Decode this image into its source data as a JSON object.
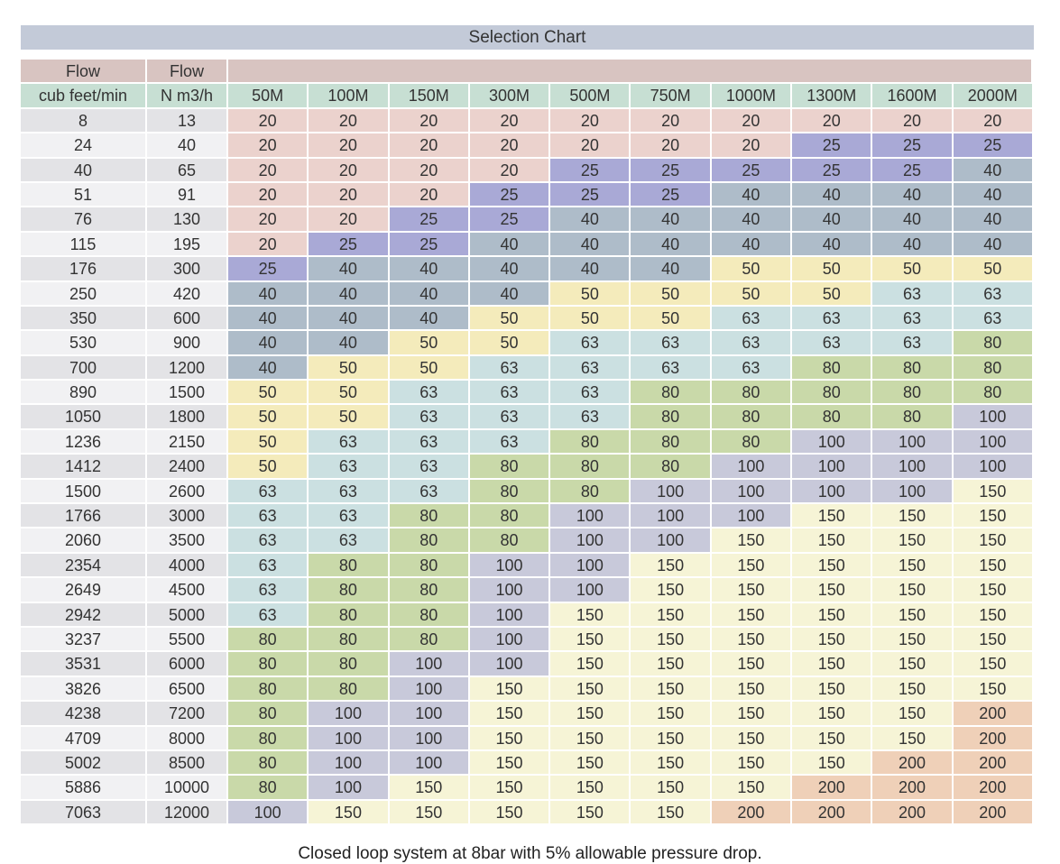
{
  "title": "Selection Chart",
  "caption": "Closed loop system at 8bar with 5% allowable pressure drop.",
  "header": {
    "flow1_label": "Flow",
    "flow1_unit": "cub feet/min",
    "flow2_label": "Flow",
    "flow2_unit": "N m3/h"
  },
  "columns": [
    "50M",
    "100M",
    "150M",
    "300M",
    "500M",
    "750M",
    "1000M",
    "1300M",
    "1600M",
    "2000M"
  ],
  "rows": [
    {
      "cfm": "8",
      "nm3h": "13",
      "values": [
        "20",
        "20",
        "20",
        "20",
        "20",
        "20",
        "20",
        "20",
        "20",
        "20"
      ]
    },
    {
      "cfm": "24",
      "nm3h": "40",
      "values": [
        "20",
        "20",
        "20",
        "20",
        "20",
        "20",
        "20",
        "25",
        "25",
        "25"
      ]
    },
    {
      "cfm": "40",
      "nm3h": "65",
      "values": [
        "20",
        "20",
        "20",
        "20",
        "25",
        "25",
        "25",
        "25",
        "25",
        "40"
      ]
    },
    {
      "cfm": "51",
      "nm3h": "91",
      "values": [
        "20",
        "20",
        "20",
        "25",
        "25",
        "25",
        "40",
        "40",
        "40",
        "40"
      ]
    },
    {
      "cfm": "76",
      "nm3h": "130",
      "values": [
        "20",
        "20",
        "25",
        "25",
        "40",
        "40",
        "40",
        "40",
        "40",
        "40"
      ]
    },
    {
      "cfm": "115",
      "nm3h": "195",
      "values": [
        "20",
        "25",
        "25",
        "40",
        "40",
        "40",
        "40",
        "40",
        "40",
        "40"
      ]
    },
    {
      "cfm": "176",
      "nm3h": "300",
      "values": [
        "25",
        "40",
        "40",
        "40",
        "40",
        "40",
        "50",
        "50",
        "50",
        "50"
      ]
    },
    {
      "cfm": "250",
      "nm3h": "420",
      "values": [
        "40",
        "40",
        "40",
        "40",
        "50",
        "50",
        "50",
        "50",
        "63",
        "63"
      ]
    },
    {
      "cfm": "350",
      "nm3h": "600",
      "values": [
        "40",
        "40",
        "40",
        "50",
        "50",
        "50",
        "63",
        "63",
        "63",
        "63"
      ]
    },
    {
      "cfm": "530",
      "nm3h": "900",
      "values": [
        "40",
        "40",
        "50",
        "50",
        "63",
        "63",
        "63",
        "63",
        "63",
        "80"
      ]
    },
    {
      "cfm": "700",
      "nm3h": "1200",
      "values": [
        "40",
        "50",
        "50",
        "63",
        "63",
        "63",
        "63",
        "80",
        "80",
        "80"
      ]
    },
    {
      "cfm": "890",
      "nm3h": "1500",
      "values": [
        "50",
        "50",
        "63",
        "63",
        "63",
        "80",
        "80",
        "80",
        "80",
        "80"
      ]
    },
    {
      "cfm": "1050",
      "nm3h": "1800",
      "values": [
        "50",
        "50",
        "63",
        "63",
        "63",
        "80",
        "80",
        "80",
        "80",
        "100"
      ]
    },
    {
      "cfm": "1236",
      "nm3h": "2150",
      "values": [
        "50",
        "63",
        "63",
        "63",
        "80",
        "80",
        "80",
        "100",
        "100",
        "100"
      ]
    },
    {
      "cfm": "1412",
      "nm3h": "2400",
      "values": [
        "50",
        "63",
        "63",
        "80",
        "80",
        "80",
        "100",
        "100",
        "100",
        "100"
      ]
    },
    {
      "cfm": "1500",
      "nm3h": "2600",
      "values": [
        "63",
        "63",
        "63",
        "80",
        "80",
        "100",
        "100",
        "100",
        "100",
        "150"
      ]
    },
    {
      "cfm": "1766",
      "nm3h": "3000",
      "values": [
        "63",
        "63",
        "80",
        "80",
        "100",
        "100",
        "100",
        "150",
        "150",
        "150"
      ]
    },
    {
      "cfm": "2060",
      "nm3h": "3500",
      "values": [
        "63",
        "63",
        "80",
        "80",
        "100",
        "100",
        "150",
        "150",
        "150",
        "150"
      ]
    },
    {
      "cfm": "2354",
      "nm3h": "4000",
      "values": [
        "63",
        "80",
        "80",
        "100",
        "100",
        "150",
        "150",
        "150",
        "150",
        "150"
      ]
    },
    {
      "cfm": "2649",
      "nm3h": "4500",
      "values": [
        "63",
        "80",
        "80",
        "100",
        "100",
        "150",
        "150",
        "150",
        "150",
        "150"
      ]
    },
    {
      "cfm": "2942",
      "nm3h": "5000",
      "values": [
        "63",
        "80",
        "80",
        "100",
        "150",
        "150",
        "150",
        "150",
        "150",
        "150"
      ]
    },
    {
      "cfm": "3237",
      "nm3h": "5500",
      "values": [
        "80",
        "80",
        "80",
        "100",
        "150",
        "150",
        "150",
        "150",
        "150",
        "150"
      ]
    },
    {
      "cfm": "3531",
      "nm3h": "6000",
      "values": [
        "80",
        "80",
        "100",
        "100",
        "150",
        "150",
        "150",
        "150",
        "150",
        "150"
      ]
    },
    {
      "cfm": "3826",
      "nm3h": "6500",
      "values": [
        "80",
        "80",
        "100",
        "150",
        "150",
        "150",
        "150",
        "150",
        "150",
        "150"
      ]
    },
    {
      "cfm": "4238",
      "nm3h": "7200",
      "values": [
        "80",
        "100",
        "100",
        "150",
        "150",
        "150",
        "150",
        "150",
        "150",
        "200"
      ]
    },
    {
      "cfm": "4709",
      "nm3h": "8000",
      "values": [
        "80",
        "100",
        "100",
        "150",
        "150",
        "150",
        "150",
        "150",
        "150",
        "200"
      ]
    },
    {
      "cfm": "5002",
      "nm3h": "8500",
      "values": [
        "80",
        "100",
        "100",
        "150",
        "150",
        "150",
        "150",
        "150",
        "200",
        "200"
      ]
    },
    {
      "cfm": "5886",
      "nm3h": "10000",
      "values": [
        "80",
        "100",
        "150",
        "150",
        "150",
        "150",
        "150",
        "200",
        "200",
        "200"
      ]
    },
    {
      "cfm": "7063",
      "nm3h": "12000",
      "values": [
        "100",
        "150",
        "150",
        "150",
        "150",
        "150",
        "200",
        "200",
        "200",
        "200"
      ]
    }
  ],
  "size_colors": {
    "20": "#ebd2cd",
    "25": "#a9a9d6",
    "40": "#aebcc9",
    "50": "#f4ebbb",
    "63": "#cbe0e1",
    "80": "#c9d9a9",
    "100": "#c8c9da",
    "150": "#f6f4d6",
    "200": "#efd0b8"
  }
}
